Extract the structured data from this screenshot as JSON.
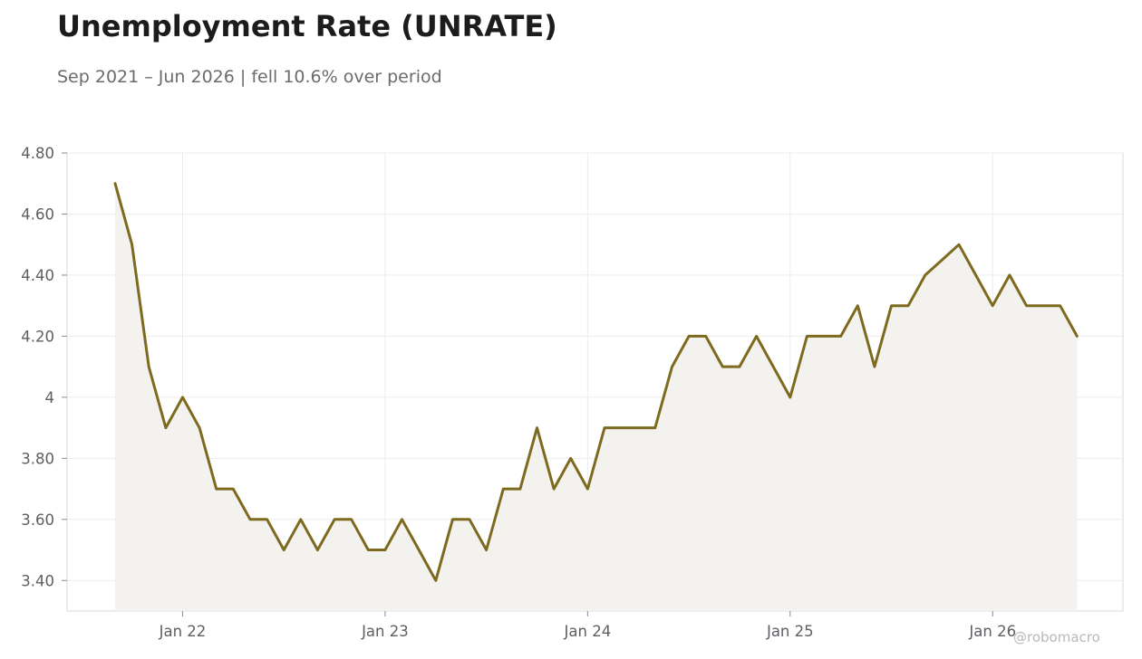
{
  "title": "Unemployment Rate (UNRATE)",
  "subtitle": "Sep 2021 – Jun 2026 | fell 10.6% over period",
  "watermark": "@robomacro",
  "colors": {
    "line": "#7d6a1f",
    "fill": "#f3f2ee",
    "grid": "#ececec",
    "frame": "#d8d8d8"
  },
  "chart_data": {
    "type": "area",
    "title": "Unemployment Rate (UNRATE)",
    "series": [
      {
        "start": "2021-09",
        "values": [
          4.7,
          4.5,
          4.1,
          3.9,
          4.0,
          3.9,
          3.7,
          3.7,
          3.6,
          3.6,
          3.5,
          3.6,
          3.5,
          3.6,
          3.6,
          3.5,
          3.5,
          3.6,
          3.5,
          3.4,
          3.6,
          3.6,
          3.5,
          3.7,
          3.7,
          3.9,
          3.7,
          3.8,
          3.7,
          3.9,
          3.9,
          3.9,
          3.9,
          4.1,
          4.2,
          4.2,
          4.1,
          4.1,
          4.2,
          4.1,
          4.0,
          4.2,
          4.2,
          4.2,
          4.3,
          4.1,
          4.3,
          4.3,
          4.4,
          4.45,
          4.5,
          4.4,
          4.3,
          4.4,
          4.3,
          4.3,
          4.3,
          4.2
        ]
      }
    ],
    "x_ticks": [
      "Jan 22",
      "Jan 23",
      "Jan 24",
      "Jan 25",
      "Jan 26"
    ],
    "y_ticks": [
      "3.40",
      "3.60",
      "3.80",
      "4",
      "4.20",
      "4.40",
      "4.60",
      "4.80"
    ],
    "ylim": [
      3.3,
      4.8
    ],
    "grid": true,
    "legend": "none"
  }
}
